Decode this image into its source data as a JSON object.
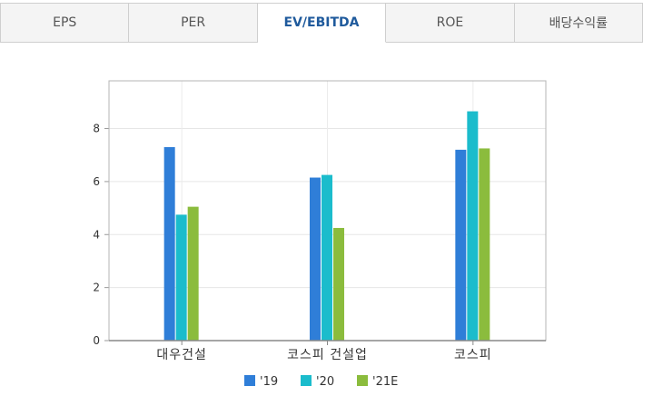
{
  "tabs": [
    {
      "label": "EPS",
      "active": false
    },
    {
      "label": "PER",
      "active": false
    },
    {
      "label": "EV/EBITDA",
      "active": true
    },
    {
      "label": "ROE",
      "active": false
    },
    {
      "label": "배당수익률",
      "active": false
    }
  ],
  "chart_data": {
    "type": "bar",
    "categories": [
      "대우건설",
      "코스피 건설업",
      "코스피"
    ],
    "series": [
      {
        "name": "'19",
        "color": "#2f7ed8",
        "values": [
          7.3,
          6.15,
          7.2
        ]
      },
      {
        "name": "'20",
        "color": "#1bbccc",
        "values": [
          4.75,
          6.25,
          8.65
        ]
      },
      {
        "name": "'21E",
        "color": "#8bbc3d",
        "values": [
          5.05,
          4.25,
          7.25
        ]
      }
    ],
    "yticks": [
      0,
      2,
      4,
      6,
      8
    ],
    "ylim": [
      0,
      9.8
    ],
    "grid": true,
    "legend_position": "bottom-center"
  }
}
